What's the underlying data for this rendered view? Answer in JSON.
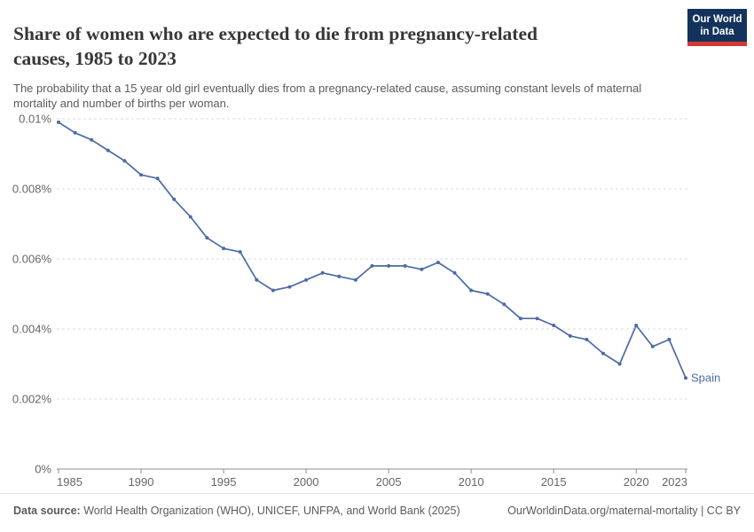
{
  "header": {
    "title": "Share of women who are expected to die from pregnancy-related causes, 1985 to 2023",
    "logo": {
      "line1": "Our World",
      "line2": "in Data"
    }
  },
  "subtitle": "The probability that a 15 year old girl eventually dies from a pregnancy-related cause, assuming constant levels of maternal mortality and number of births per woman.",
  "chart_data": {
    "type": "line",
    "title": "Share of women who are expected to die from pregnancy-related causes, 1985 to 2023",
    "x": [
      1985,
      1986,
      1987,
      1988,
      1989,
      1990,
      1991,
      1992,
      1993,
      1994,
      1995,
      1996,
      1997,
      1998,
      1999,
      2000,
      2001,
      2002,
      2003,
      2004,
      2005,
      2006,
      2007,
      2008,
      2009,
      2010,
      2011,
      2012,
      2013,
      2014,
      2015,
      2016,
      2017,
      2018,
      2019,
      2020,
      2021,
      2022,
      2023
    ],
    "series": [
      {
        "name": "Spain",
        "values": [
          0.0099,
          0.0096,
          0.0094,
          0.0091,
          0.0088,
          0.0084,
          0.0083,
          0.0077,
          0.0072,
          0.0066,
          0.0063,
          0.0062,
          0.0054,
          0.0051,
          0.0052,
          0.0054,
          0.0056,
          0.0055,
          0.0054,
          0.0058,
          0.0058,
          0.0058,
          0.0057,
          0.0059,
          0.0056,
          0.0051,
          0.005,
          0.0047,
          0.0043,
          0.0043,
          0.0041,
          0.0038,
          0.0037,
          0.0033,
          0.003,
          0.0041,
          0.0035,
          0.0037,
          0.0026
        ]
      }
    ],
    "unit": "%",
    "xlim": [
      1985,
      2023
    ],
    "ylim": [
      0,
      0.01
    ],
    "x_ticks": [
      1985,
      1990,
      1995,
      2000,
      2005,
      2010,
      2015,
      2020,
      2023
    ],
    "y_ticks": [
      {
        "value": 0.01,
        "label": "0.01%"
      },
      {
        "value": 0.008,
        "label": "0.008%"
      },
      {
        "value": 0.006,
        "label": "0.006%"
      },
      {
        "value": 0.004,
        "label": "0.004%"
      },
      {
        "value": 0.002,
        "label": "0.002%"
      },
      {
        "value": 0,
        "label": "0%"
      }
    ],
    "grid": "horizontal-dashed",
    "legend": "series-end-label"
  },
  "colors": {
    "line": "#4C6BA5",
    "grid": "#DBDBDB",
    "axis": "#8D8D8D",
    "tick_text": "#666666",
    "title_text": "#373737",
    "muted_text": "#5B5B5B",
    "logo_bg": "#14335C",
    "logo_red": "#D13A34"
  },
  "footer": {
    "datasource_label": "Data source:",
    "datasource_text": "World Health Organization (WHO), UNICEF, UNFPA, and World Bank (2025)",
    "link_text": "OurWorldinData.org/maternal-mortality | CC BY"
  }
}
